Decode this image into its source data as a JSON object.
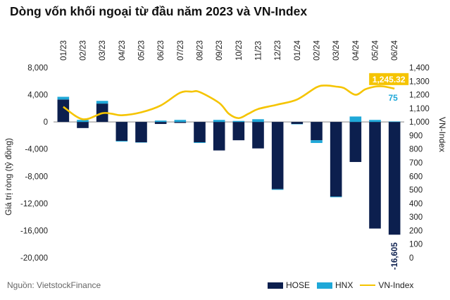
{
  "title": "Dòng vốn khối ngoại từ đầu năm 2023 và VN-Index",
  "source": "Nguồn:  VietstockFinance",
  "colors": {
    "hose": "#0c1f4e",
    "hnx": "#1fa8d8",
    "vnindex": "#f5c400"
  },
  "chart_data": {
    "type": "bar",
    "categories": [
      "01/23",
      "02/23",
      "03/23",
      "04/23",
      "05/23",
      "06/23",
      "07/23",
      "08/23",
      "09/23",
      "10/23",
      "11/23",
      "12/23",
      "01/24",
      "02/24",
      "03/24",
      "04/24",
      "05/24",
      "06/24"
    ],
    "series": [
      {
        "name": "HOSE",
        "type": "stacked-bar",
        "axis": "left",
        "values": [
          3300,
          -900,
          2700,
          -2800,
          -3000,
          -300,
          -150,
          -3000,
          -4200,
          -2700,
          -3900,
          -9900,
          -300,
          -2700,
          -11000,
          -5900,
          -15700,
          -16605
        ]
      },
      {
        "name": "HNX",
        "type": "stacked-bar",
        "axis": "left",
        "values": [
          400,
          300,
          400,
          -100,
          -50,
          200,
          300,
          -100,
          300,
          150,
          400,
          -100,
          -50,
          -400,
          -100,
          800,
          300,
          75
        ]
      },
      {
        "name": "VN-Index",
        "type": "line",
        "axis": "right",
        "x": [
          0,
          1,
          2,
          2.5,
          3,
          4,
          5,
          6,
          6.6,
          7,
          8,
          8.5,
          9,
          9.5,
          10,
          11,
          12,
          13,
          13.5,
          14,
          14.4,
          15,
          15.5,
          16,
          16.4,
          17
        ],
        "values": [
          1111,
          1020,
          1064,
          1060,
          1049,
          1071,
          1121,
          1215,
          1223,
          1220,
          1140,
          1060,
          1028,
          1060,
          1095,
          1128,
          1165,
          1255,
          1268,
          1260,
          1250,
          1200,
          1240,
          1260,
          1262,
          1245.32
        ]
      }
    ],
    "y_left": {
      "label": "Giá trị ròng  (tỷ đồng)",
      "ylim": [
        -20000,
        8000
      ],
      "ticks": [
        8000,
        4000,
        0,
        -4000,
        -8000,
        -12000,
        -16000,
        -20000
      ],
      "tick_labels": [
        "8,000",
        "4,000",
        "0",
        "-4,000",
        "-8,000",
        "-12,000",
        "-16,000",
        "-20,000"
      ]
    },
    "y_right": {
      "label": "VN-Index",
      "ylim": [
        0,
        1400
      ],
      "ticks": [
        1400,
        1300,
        1200,
        1100,
        1000,
        900,
        800,
        700,
        600,
        500,
        400,
        300,
        200,
        100,
        0
      ],
      "tick_labels": [
        "1,400",
        "1,300",
        "1,200",
        "1,100",
        "1,000",
        "900",
        "800",
        "700",
        "600",
        "500",
        "400",
        "300",
        "200",
        "100",
        "0"
      ]
    },
    "annotations": {
      "vnindex_last": "1,245.32",
      "hnx_last": "75",
      "hose_last": "-16,605"
    },
    "legend": [
      "HOSE",
      "HNX",
      "VN-Index"
    ],
    "legend_position": "bottom-right",
    "grid": false
  }
}
